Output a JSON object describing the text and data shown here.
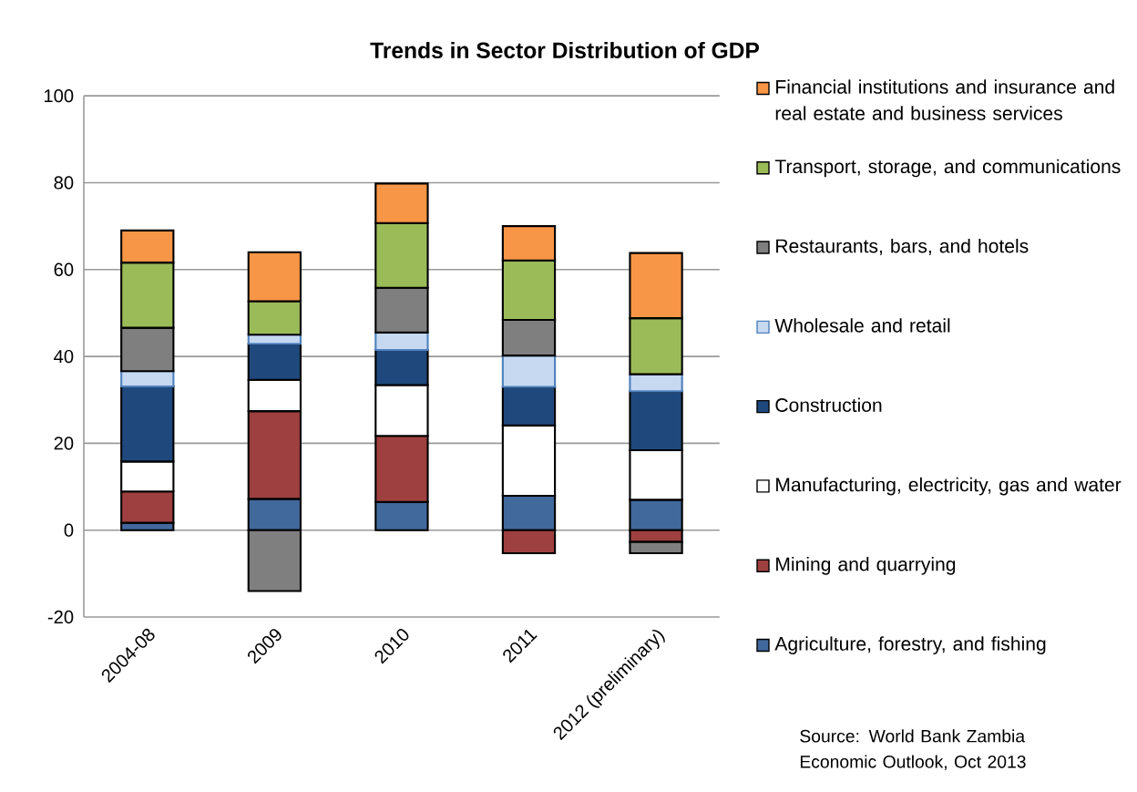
{
  "chart_data": {
    "type": "bar",
    "stacked": true,
    "title": "Trends in Sector Distribution of GDP",
    "categories": [
      "2004-08",
      "2009",
      "2010",
      "2011",
      "2012 (preliminary)"
    ],
    "series": [
      {
        "name": "Agriculture, forestry, and fishing",
        "color": "#41699c",
        "values": [
          1.7,
          7.2,
          6.5,
          7.9,
          7.0
        ]
      },
      {
        "name": "Mining and quarrying",
        "color": "#9e403f",
        "values": [
          7.2,
          20.2,
          15.2,
          -5.3,
          -2.7
        ]
      },
      {
        "name": "Manufacturing, electricity, gas and water",
        "color": "#ffffff",
        "values": [
          6.9,
          7.2,
          11.7,
          16.2,
          11.4
        ]
      },
      {
        "name": "Construction",
        "color": "#1f497d",
        "values": [
          17.3,
          8.3,
          8.1,
          8.9,
          13.6
        ]
      },
      {
        "name": "Wholesale and retail",
        "color": "#c6d9f1",
        "values": [
          3.5,
          2.1,
          4.0,
          7.2,
          3.9
        ]
      },
      {
        "name": "Restaurants, bars, and hotels",
        "color": "#7f7f7f",
        "values": [
          10.0,
          -14.0,
          10.3,
          8.2,
          -2.6
        ]
      },
      {
        "name": "Transport, storage, and communications",
        "color": "#9bbb59",
        "values": [
          15.0,
          7.7,
          14.9,
          13.7,
          12.9
        ]
      },
      {
        "name": "Financial institutions and insurance and real estate and business services",
        "color": "#f79646",
        "values": [
          7.4,
          11.3,
          9.1,
          7.9,
          15.0
        ]
      }
    ],
    "ylim": [
      -20,
      100
    ],
    "yticks": [
      -20,
      0,
      20,
      40,
      60,
      80,
      100
    ],
    "grid": "y",
    "legend": "right",
    "annotations": [
      "Source: World Bank Zambia Economic Outlook, Oct 2013"
    ]
  }
}
